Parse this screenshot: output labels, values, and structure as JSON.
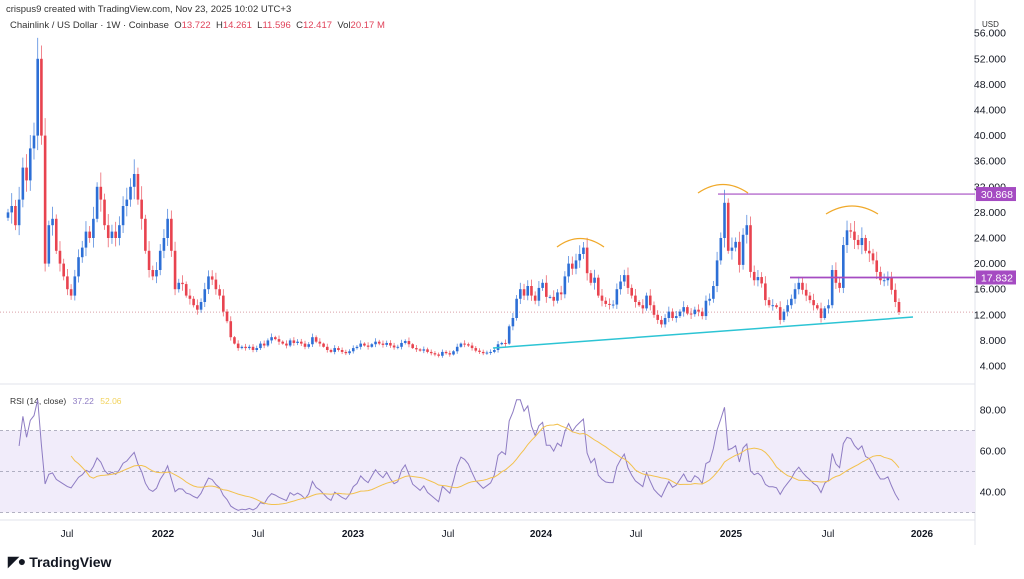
{
  "header": {
    "attribution": "crispus9 created with TradingView.com, Nov 23, 2025 10:02 UTC+3"
  },
  "legend": {
    "symbol": "Chainlink / US Dollar · 1W · Coinbase",
    "open_label": "O",
    "open": "13.722",
    "high_label": "H",
    "high": "14.261",
    "low_label": "L",
    "low": "11.596",
    "close_label": "C",
    "close": "12.417",
    "vol_label": "Vol",
    "vol": "20.17 M"
  },
  "rsi_legend": {
    "label": "RSI (14, close)",
    "rsi": "37.22",
    "ma": "52.06"
  },
  "logo": {
    "text": "TradingView"
  },
  "colors": {
    "up": "#2d6fd6",
    "down": "#e8434f",
    "rsi": "#8e7cc3",
    "rsi_ma": "#f2c14e",
    "trendline": "#2cc4d4",
    "arc": "#f0a92a",
    "level": "#a54bc2"
  },
  "chart_data": {
    "type": "candlestick",
    "interval": "1W",
    "currency_label": "USD",
    "ylim": [
      2,
      57
    ],
    "y_ticks": [
      "4.000",
      "8.000",
      "12.000",
      "16.000",
      "20.000",
      "24.000",
      "28.000",
      "32.000",
      "36.000",
      "40.000",
      "44.000",
      "48.000",
      "52.000",
      "56.000"
    ],
    "x_ticks": [
      "Jul",
      "2022",
      "Jul",
      "2023",
      "Jul",
      "2024",
      "Jul",
      "2025",
      "Jul",
      "2026"
    ],
    "closes": [
      28,
      29,
      26,
      30,
      35,
      33,
      38,
      40,
      52,
      40,
      20,
      26,
      27,
      22,
      20,
      18,
      16,
      15,
      18,
      21,
      22.5,
      25,
      24,
      27,
      32,
      30,
      26,
      24,
      25,
      24,
      26,
      29,
      30,
      32,
      34,
      30,
      27,
      22,
      19,
      18,
      19,
      22,
      24,
      27,
      22,
      16,
      17,
      16.8,
      15,
      14.5,
      13.5,
      12.8,
      14,
      16,
      18,
      17.5,
      16,
      15,
      12.5,
      11,
      8.5,
      7.5,
      6.8,
      7,
      6.8,
      7,
      6.5,
      6.8,
      7.5,
      7.2,
      8,
      8.5,
      8.2,
      7.8,
      7.5,
      7.2,
      8,
      7.6,
      7.8,
      7.5,
      7,
      7.4,
      8.5,
      7.8,
      7.5,
      7,
      6.5,
      6.2,
      6.8,
      6.5,
      6.2,
      6,
      6.3,
      6.8,
      7,
      7.5,
      7.2,
      7,
      7.4,
      7.8,
      7.5,
      7.3,
      7.6,
      7.2,
      6.9,
      7,
      7.6,
      7.9,
      7.4,
      6.8,
      6.6,
      6.4,
      6.6,
      6.2,
      6,
      5.8,
      5.6,
      6.2,
      6,
      5.8,
      6.3,
      7,
      7.5,
      7.4,
      7.2,
      6.8,
      6.4,
      6.2,
      6,
      6.1,
      6.2,
      6.5,
      7.4,
      7.6,
      7.5,
      10.2,
      11.5,
      14.5,
      16,
      15,
      16.5,
      15,
      14.2,
      16.2,
      17,
      14.8,
      14.8,
      14.2,
      15.5,
      15.2,
      18,
      20,
      19.2,
      20.5,
      21.5,
      22.5,
      18.5,
      17,
      17.8,
      15,
      14.2,
      13.7,
      13.6,
      13.6,
      16,
      17.2,
      18.2,
      16.2,
      15,
      14,
      13.5,
      13,
      15,
      13.5,
      12,
      11.2,
      10.5,
      11.5,
      12.5,
      11.5,
      11.8,
      12.5,
      13.2,
      12.2,
      12.1,
      12.8,
      12.5,
      11.8,
      14.2,
      14.5,
      16.5,
      20.5,
      24,
      29.5,
      22,
      22.5,
      23.4,
      19.8,
      24.5,
      26,
      18.7,
      17.4,
      17.9,
      16.9,
      14.3,
      13.5,
      13.5,
      13.2,
      11.2,
      12.5,
      13.5,
      14.5,
      16,
      17,
      15.9,
      15,
      14.3,
      13.5,
      13,
      11.5,
      13,
      13.5,
      19,
      17,
      16.2,
      22.9,
      25.2,
      25,
      23.7,
      22.9,
      24,
      22,
      21.6,
      20.5,
      18.7,
      17.4,
      17.4,
      17.8,
      15.9,
      14,
      12.417
    ],
    "last_price": 12.417,
    "levels": [
      {
        "value": 30.868,
        "label": "30.868"
      },
      {
        "value": 17.832,
        "label": "17.832"
      }
    ],
    "rsi": {
      "period": 14,
      "ma_period": 14,
      "ylim": [
        25,
        88
      ],
      "y_ticks": [
        "40.00",
        "60.00",
        "80.00"
      ],
      "upper_band": 70,
      "middle": 50,
      "lower_band": 30
    }
  }
}
